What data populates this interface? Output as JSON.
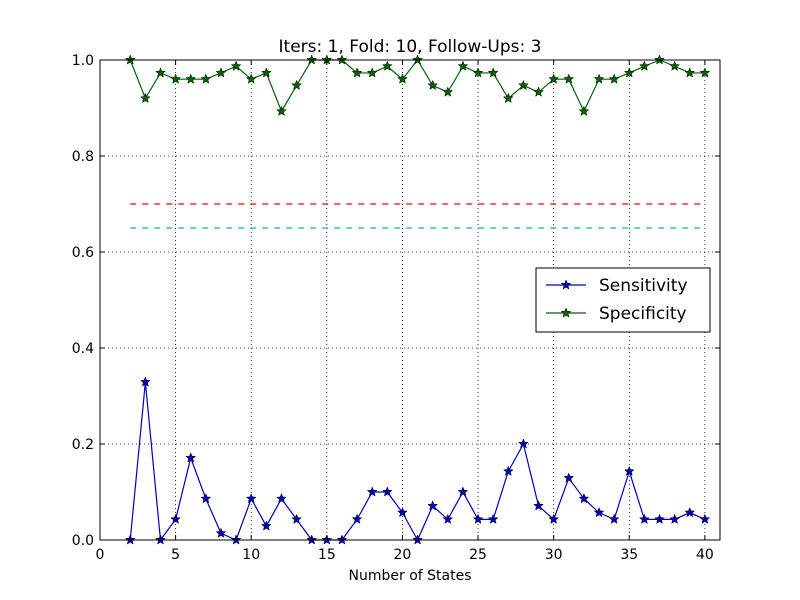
{
  "chart_data": {
    "type": "line",
    "title": "Iters: 1, Fold: 10, Follow-Ups: 3",
    "xlabel": "Number of States",
    "ylabel": "",
    "xlim": [
      0,
      41
    ],
    "ylim": [
      0.0,
      1.0
    ],
    "x_ticks": [
      0,
      5,
      10,
      15,
      20,
      25,
      30,
      35,
      40
    ],
    "y_ticks": [
      0.0,
      0.2,
      0.4,
      0.6,
      0.8,
      1.0
    ],
    "x_tick_labels": [
      "0",
      "5",
      "10",
      "15",
      "20",
      "25",
      "30",
      "35",
      "40"
    ],
    "y_tick_labels": [
      "0.0",
      "0.2",
      "0.4",
      "0.6",
      "0.8",
      "1.0"
    ],
    "grid": true,
    "legend_position": "center-right",
    "x": [
      2,
      3,
      4,
      5,
      6,
      7,
      8,
      9,
      10,
      11,
      12,
      13,
      14,
      15,
      16,
      17,
      18,
      19,
      20,
      21,
      22,
      23,
      24,
      25,
      26,
      27,
      28,
      29,
      30,
      31,
      32,
      33,
      34,
      35,
      36,
      37,
      38,
      39,
      40
    ],
    "series": [
      {
        "name": "Sensitivity",
        "color": "#0000bf",
        "marker": "star",
        "values": [
          0.0,
          0.329,
          0.0,
          0.043,
          0.171,
          0.086,
          0.014,
          0.0,
          0.086,
          0.029,
          0.086,
          0.043,
          0.0,
          0.0,
          0.0,
          0.043,
          0.1,
          0.1,
          0.057,
          0.0,
          0.071,
          0.043,
          0.1,
          0.043,
          0.043,
          0.143,
          0.2,
          0.071,
          0.043,
          0.129,
          0.086,
          0.057,
          0.043,
          0.143,
          0.043,
          0.043,
          0.043,
          0.057,
          0.043
        ]
      },
      {
        "name": "Specificity",
        "color": "#006400",
        "marker": "star",
        "values": [
          1.0,
          0.92,
          0.973,
          0.96,
          0.96,
          0.96,
          0.973,
          0.987,
          0.96,
          0.973,
          0.893,
          0.947,
          1.0,
          1.0,
          1.0,
          0.973,
          0.973,
          0.987,
          0.96,
          1.0,
          0.947,
          0.933,
          0.987,
          0.973,
          0.973,
          0.92,
          0.947,
          0.933,
          0.96,
          0.96,
          0.893,
          0.96,
          0.96,
          0.973,
          0.987,
          1.0,
          0.987,
          0.973,
          0.973
        ]
      }
    ],
    "reference_lines": [
      {
        "y": 0.7,
        "x_from": 2,
        "x_to": 40,
        "color": "#ff0000",
        "style": "dashed"
      },
      {
        "y": 0.65,
        "x_from": 2,
        "x_to": 40,
        "color": "#00bfbf",
        "style": "dashed"
      }
    ]
  }
}
